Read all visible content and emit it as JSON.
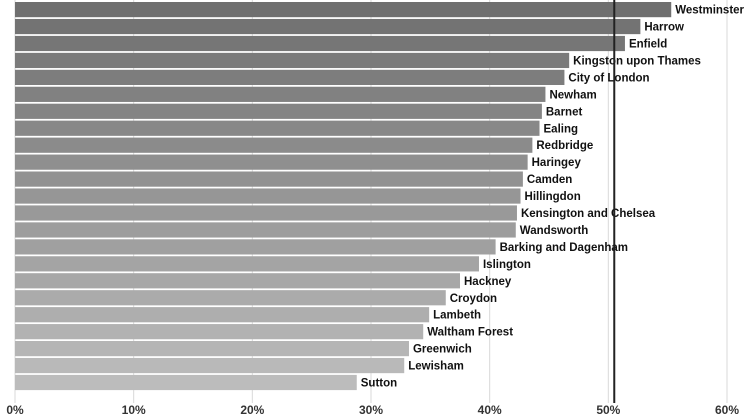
{
  "chart_data": {
    "type": "bar",
    "orientation": "horizontal",
    "categories": [
      "Westminster",
      "Harrow",
      "Enfield",
      "Kingston upon Thames",
      "City of London",
      "Newham",
      "Barnet",
      "Ealing",
      "Redbridge",
      "Haringey",
      "Camden",
      "Hillingdon",
      "Kensington and Chelsea",
      "Wandsworth",
      "Barking and Dagenham",
      "Islington",
      "Hackney",
      "Croydon",
      "Lambeth",
      "Waltham Forest",
      "Greenwich",
      "Lewisham",
      "Sutton"
    ],
    "values": [
      55.3,
      52.7,
      51.4,
      46.7,
      46.3,
      44.7,
      44.4,
      44.2,
      43.6,
      43.2,
      42.8,
      42.6,
      42.3,
      42.2,
      40.5,
      39.1,
      37.5,
      36.3,
      34.9,
      34.4,
      33.2,
      32.8,
      28.8
    ],
    "reference_line": 50.5,
    "xlim": [
      0,
      60
    ],
    "xticks": [
      "0%",
      "10%",
      "20%",
      "30%",
      "40%",
      "50%",
      "60%"
    ],
    "title": "",
    "xlabel": "",
    "ylabel": "",
    "grid": "vertical",
    "legend": "none",
    "colors": {
      "bar_top": "#6f6f6f",
      "bar_bottom": "#bcbcbc",
      "reference_line": "#222222",
      "grid": "#d9d9d9",
      "background": "#ffffff"
    }
  }
}
